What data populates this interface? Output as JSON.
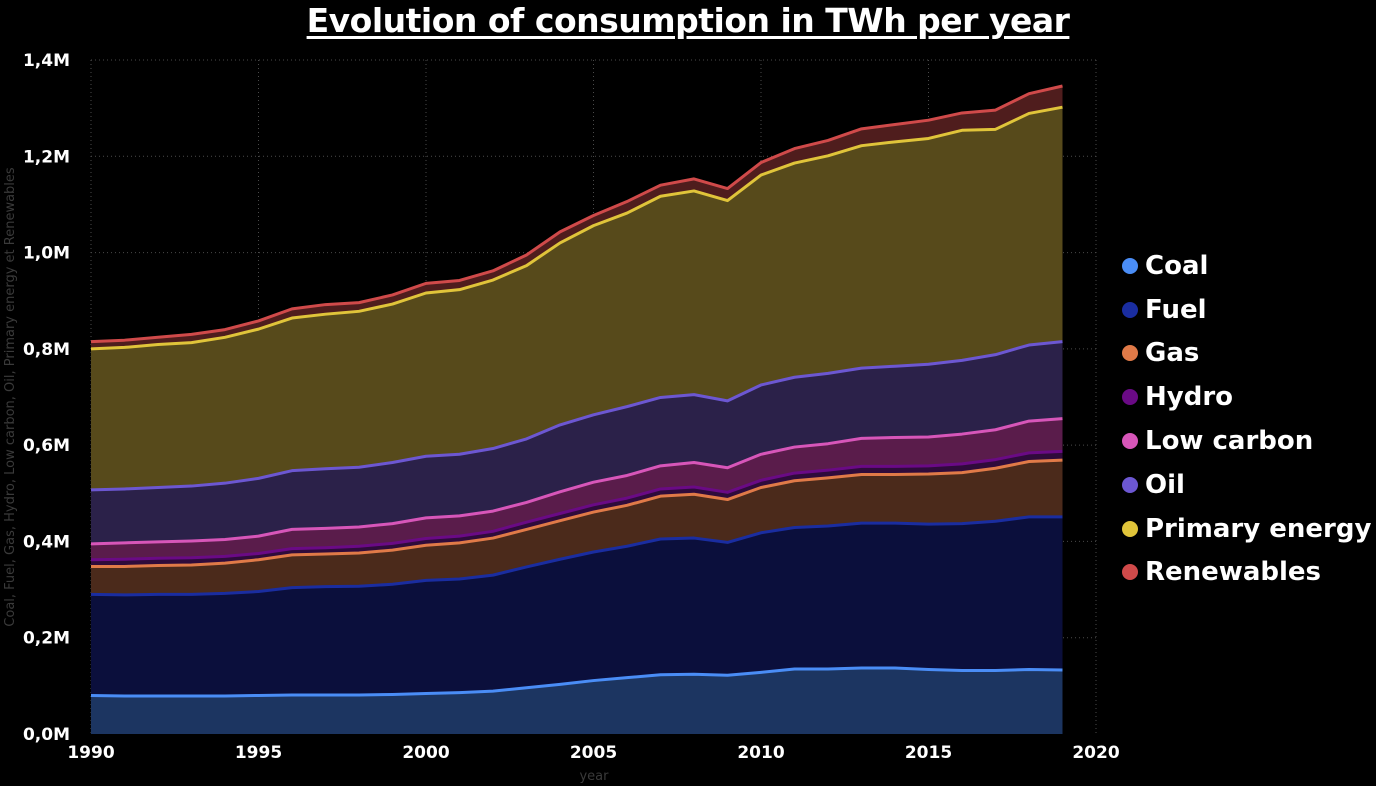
{
  "chart_data": {
    "type": "area",
    "stacked": false,
    "title": "Evolution of consumption in TWh per year",
    "xlabel": "year",
    "ylabel": "Coal, Fuel, Gas, Hydro, Low carbon, Oil, Primary energy et Renewables",
    "xlim": [
      1990,
      2020
    ],
    "ylim": [
      0,
      1400000
    ],
    "x_ticks": [
      1990,
      1995,
      2000,
      2005,
      2010,
      2015,
      2020
    ],
    "x_tick_labels": [
      "1990",
      "1995",
      "2000",
      "2005",
      "2010",
      "2015",
      "2020"
    ],
    "y_ticks": [
      0,
      200000,
      400000,
      600000,
      800000,
      1000000,
      1200000,
      1400000
    ],
    "y_tick_labels": [
      "0,0M",
      "0,2M",
      "0,4M",
      "0,6M",
      "0,8M",
      "1,0M",
      "1,2M",
      "1,4M"
    ],
    "grid": true,
    "legend_position": "right",
    "x": [
      1990,
      1991,
      1992,
      1993,
      1994,
      1995,
      1996,
      1997,
      1998,
      1999,
      2000,
      2001,
      2002,
      2003,
      2004,
      2005,
      2006,
      2007,
      2008,
      2009,
      2010,
      2011,
      2012,
      2013,
      2014,
      2015,
      2016,
      2017,
      2018,
      2019
    ],
    "series": [
      {
        "name": "Coal",
        "color": "#4a8df6",
        "fill": "#1c3561",
        "values": [
          80000,
          79000,
          79000,
          79000,
          79000,
          80000,
          81000,
          81000,
          81000,
          82000,
          84000,
          86000,
          89000,
          96000,
          103000,
          111000,
          117000,
          123000,
          124000,
          122000,
          128000,
          135000,
          135000,
          137000,
          137000,
          134000,
          132000,
          132000,
          134000,
          133000
        ]
      },
      {
        "name": "Fuel",
        "color": "#1a2da0",
        "fill": "#0b0f3c",
        "values": [
          290000,
          289000,
          290000,
          290000,
          292000,
          296000,
          304000,
          306000,
          307000,
          311000,
          319000,
          322000,
          330000,
          347000,
          363000,
          378000,
          390000,
          405000,
          407000,
          398000,
          418000,
          429000,
          432000,
          438000,
          438000,
          436000,
          437000,
          442000,
          451000,
          451000
        ]
      },
      {
        "name": "Gas",
        "color": "#e07a48",
        "fill": "#4b2a1b",
        "values": [
          348000,
          348000,
          350000,
          351000,
          355000,
          362000,
          372000,
          374000,
          376000,
          382000,
          392000,
          397000,
          407000,
          425000,
          443000,
          461000,
          475000,
          494000,
          498000,
          487000,
          512000,
          526000,
          532000,
          539000,
          539000,
          540000,
          543000,
          552000,
          566000,
          569000
        ]
      },
      {
        "name": "Hydro",
        "color": "#6a0a85",
        "fill": "#2f0b3b",
        "values": [
          362000,
          363000,
          365000,
          366000,
          369000,
          375000,
          385000,
          387000,
          390000,
          396000,
          406000,
          411000,
          421000,
          440000,
          458000,
          476000,
          490000,
          509000,
          513000,
          502000,
          527000,
          542000,
          548000,
          556000,
          556000,
          557000,
          561000,
          570000,
          584000,
          587000
        ]
      },
      {
        "name": "Low carbon",
        "color": "#d756b9",
        "fill": "#5a1c4b",
        "values": [
          395000,
          397000,
          399000,
          401000,
          404000,
          411000,
          425000,
          427000,
          430000,
          437000,
          449000,
          453000,
          463000,
          481000,
          503000,
          523000,
          537000,
          557000,
          564000,
          553000,
          581000,
          596000,
          603000,
          614000,
          616000,
          617000,
          623000,
          632000,
          650000,
          655000
        ]
      },
      {
        "name": "Oil",
        "color": "#6c57d2",
        "fill": "#2b2149",
        "values": [
          507000,
          509000,
          512000,
          515000,
          521000,
          531000,
          547000,
          551000,
          554000,
          564000,
          577000,
          581000,
          593000,
          613000,
          642000,
          663000,
          680000,
          699000,
          705000,
          692000,
          725000,
          741000,
          749000,
          760000,
          764000,
          768000,
          776000,
          788000,
          808000,
          815000
        ]
      },
      {
        "name": "Primary energy",
        "color": "#e0c43a",
        "fill": "#574a1b",
        "values": [
          800000,
          803000,
          809000,
          813000,
          824000,
          841000,
          864000,
          872000,
          878000,
          893000,
          916000,
          923000,
          943000,
          973000,
          1020000,
          1056000,
          1082000,
          1117000,
          1128000,
          1108000,
          1161000,
          1186000,
          1201000,
          1222000,
          1230000,
          1237000,
          1254000,
          1256000,
          1289000,
          1302000
        ]
      },
      {
        "name": "Renewables",
        "color": "#d04a4a",
        "fill": "#4f1d1d",
        "values": [
          815000,
          818000,
          824000,
          830000,
          840000,
          858000,
          883000,
          892000,
          896000,
          912000,
          936000,
          942000,
          962000,
          995000,
          1043000,
          1077000,
          1106000,
          1140000,
          1153000,
          1133000,
          1187000,
          1216000,
          1233000,
          1257000,
          1266000,
          1275000,
          1290000,
          1296000,
          1330000,
          1346000
        ]
      }
    ]
  }
}
